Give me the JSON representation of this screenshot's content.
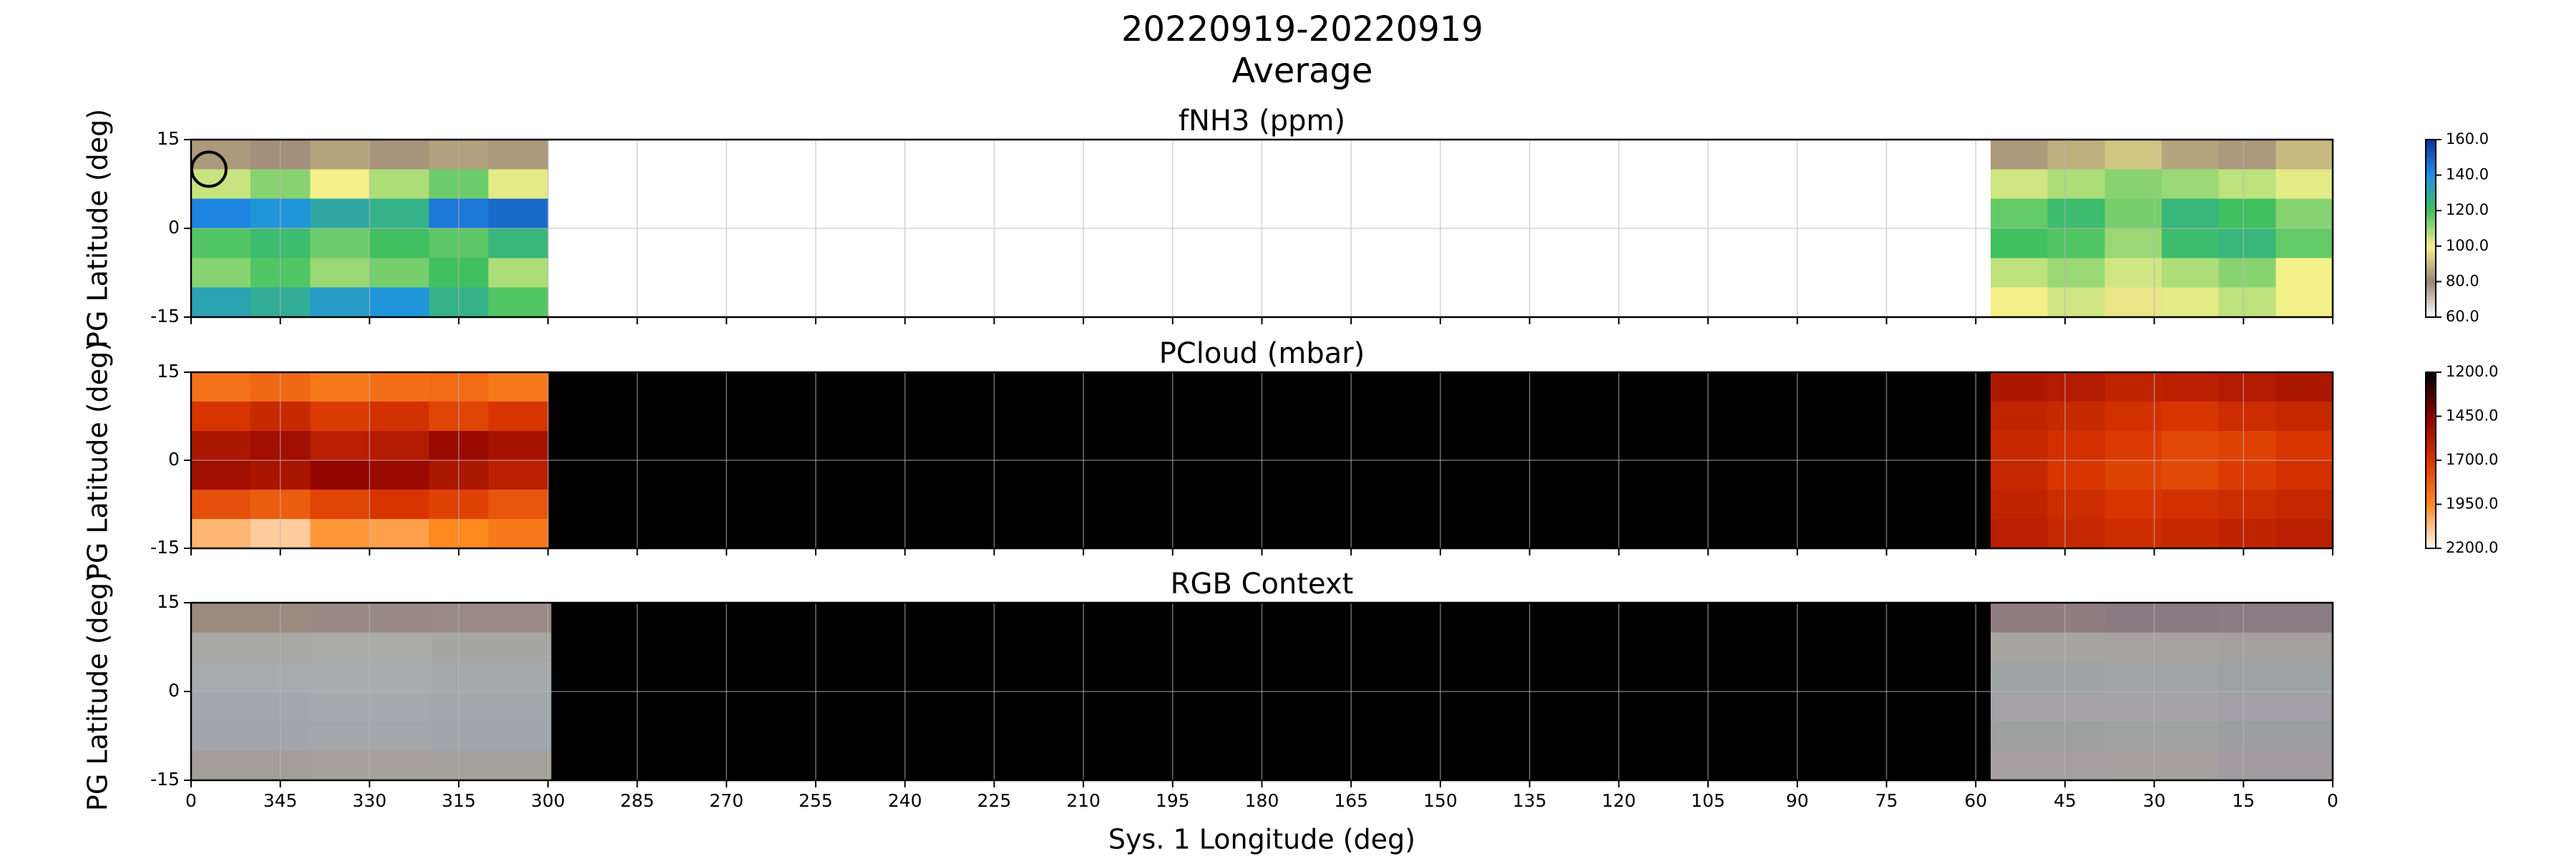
{
  "figure": {
    "title": "20220919-20220919",
    "subtitle": "Average"
  },
  "chart_data": [
    {
      "type": "heatmap",
      "title": "fNH3 (ppm)",
      "ylabel": "PG Latitude (deg)",
      "xlim": [
        360,
        0
      ],
      "xticks": [
        {
          "value": 360,
          "label": "0"
        },
        345,
        330,
        315,
        300,
        285,
        270,
        255,
        240,
        225,
        210,
        195,
        180,
        165,
        150,
        135,
        120,
        105,
        90,
        75,
        60,
        45,
        30,
        15,
        0
      ],
      "ylim": [
        -15,
        15
      ],
      "yticks": [
        -15,
        0,
        15
      ],
      "grid": true,
      "background": "#ffffff",
      "colormap": [
        "#ffffff",
        "#9a8478",
        "#f4f08a",
        "#40c060",
        "#1e90e8",
        "#1030a0"
      ],
      "clim": [
        60,
        160
      ],
      "colorbar_ticks": [
        {
          "value": 60,
          "label": "60.0"
        },
        {
          "value": 80,
          "label": "80.0"
        },
        {
          "value": 100,
          "label": "100.0"
        },
        {
          "value": 120,
          "label": "120.0"
        },
        {
          "value": 140,
          "label": "140.0"
        },
        {
          "value": 160,
          "label": "160.0"
        }
      ],
      "regions": [
        {
          "xlim": [
            360,
            300
          ],
          "values": [
            [
              84,
              82,
              86,
              83,
              85,
              84
            ],
            [
              105,
              112,
              100,
              108,
              115,
              102
            ],
            [
              142,
              138,
              130,
              126,
              145,
              148
            ],
            [
              118,
              122,
              115,
              120,
              117,
              124
            ],
            [
              112,
              118,
              110,
              114,
              120,
              108
            ],
            [
              132,
              128,
              135,
              138,
              126,
              118
            ]
          ]
        },
        {
          "xlim": [
            57.5,
            0
          ],
          "values": [
            [
              84,
              88,
              92,
              86,
              84,
              90
            ],
            [
              104,
              108,
              112,
              110,
              106,
              102
            ],
            [
              116,
              122,
              114,
              124,
              120,
              112
            ],
            [
              120,
              118,
              110,
              122,
              124,
              116
            ],
            [
              106,
              110,
              104,
              108,
              112,
              100
            ],
            [
              100,
              104,
              98,
              102,
              106,
              100
            ]
          ]
        }
      ],
      "marker": {
        "x": 357,
        "y": 10
      }
    },
    {
      "type": "heatmap",
      "title": "PCloud (mbar)",
      "ylabel": "PG Latitude (deg)",
      "xlim": [
        360,
        0
      ],
      "xticks": [
        {
          "value": 360,
          "label": "0"
        },
        345,
        330,
        315,
        300,
        285,
        270,
        255,
        240,
        225,
        210,
        195,
        180,
        165,
        150,
        135,
        120,
        105,
        90,
        75,
        60,
        45,
        30,
        15,
        0
      ],
      "ylim": [
        -15,
        15
      ],
      "yticks": [
        -15,
        0,
        15
      ],
      "grid": true,
      "background": "#000000",
      "colormap": [
        "#fff8f0",
        "#ff8a20",
        "#d83400",
        "#8a0000",
        "#000000"
      ],
      "clim": [
        2200,
        1200
      ],
      "colorbar_ticks": [
        {
          "value": 2200,
          "label": "2200.0"
        },
        {
          "value": 1950,
          "label": "1950.0"
        },
        {
          "value": 1700,
          "label": "1700.0"
        },
        {
          "value": 1450,
          "label": "1450.0"
        },
        {
          "value": 1200,
          "label": "1200.0"
        }
      ],
      "regions": [
        {
          "xlim": [
            360,
            300
          ],
          "values": [
            [
              1880,
              1850,
              1900,
              1870,
              1860,
              1900
            ],
            [
              1700,
              1650,
              1720,
              1680,
              1750,
              1700
            ],
            [
              1560,
              1520,
              1600,
              1580,
              1500,
              1540
            ],
            [
              1520,
              1550,
              1480,
              1500,
              1560,
              1600
            ],
            [
              1780,
              1820,
              1750,
              1700,
              1740,
              1800
            ],
            [
              2050,
              2100,
              1980,
              2000,
              1950,
              1900
            ]
          ]
        },
        {
          "xlim": [
            57.5,
            0
          ],
          "values": [
            [
              1560,
              1580,
              1620,
              1600,
              1580,
              1560
            ],
            [
              1620,
              1650,
              1680,
              1700,
              1660,
              1640
            ],
            [
              1650,
              1680,
              1720,
              1760,
              1740,
              1700
            ],
            [
              1640,
              1700,
              1740,
              1760,
              1720,
              1680
            ],
            [
              1620,
              1660,
              1700,
              1680,
              1660,
              1640
            ],
            [
              1600,
              1640,
              1660,
              1650,
              1620,
              1600
            ]
          ]
        }
      ]
    },
    {
      "type": "image",
      "title": "RGB Context",
      "ylabel": "PG Latitude (deg)",
      "xlabel": "Sys. 1 Longitude (deg)",
      "xlim": [
        360,
        0
      ],
      "xticks": [
        {
          "value": 360,
          "label": "0"
        },
        345,
        330,
        315,
        300,
        285,
        270,
        255,
        240,
        225,
        210,
        195,
        180,
        165,
        150,
        135,
        120,
        105,
        90,
        75,
        60,
        45,
        30,
        15,
        0
      ],
      "ylim": [
        -15,
        15
      ],
      "yticks": [
        -15,
        0,
        15
      ],
      "grid": true,
      "background": "#000000",
      "regions": [
        {
          "xlim": [
            360,
            299.5
          ],
          "colors": [
            [
              "#9a8a80",
              "#988a82",
              "#9a8c84"
            ],
            [
              "#a8a8a6",
              "#aaaaa8",
              "#a6a6a4"
            ],
            [
              "#a6abae",
              "#a8acae",
              "#a4a9ac"
            ],
            [
              "#a2a8ad",
              "#a4aaae",
              "#a2a8ac"
            ],
            [
              "#a0a6ab",
              "#a2a8ac",
              "#a0a6aa"
            ],
            [
              "#a49e98",
              "#a6a09a",
              "#a4a09a"
            ]
          ]
        },
        {
          "xlim": [
            57.5,
            0
          ],
          "colors": [
            [
              "#907e82",
              "#8a7a82",
              "#8c7c84"
            ],
            [
              "#a8a4a0",
              "#a6a2a0",
              "#a4a0a0"
            ],
            [
              "#9ea4a4",
              "#a0a4a4",
              "#9ca2a4"
            ],
            [
              "#a4a2a6",
              "#a6a4a8",
              "#a2a0a6"
            ],
            [
              "#9ea0a0",
              "#a0a2a2",
              "#9c9ea0"
            ],
            [
              "#a49ea0",
              "#a6a0a0",
              "#a29ca0"
            ]
          ]
        }
      ]
    }
  ]
}
